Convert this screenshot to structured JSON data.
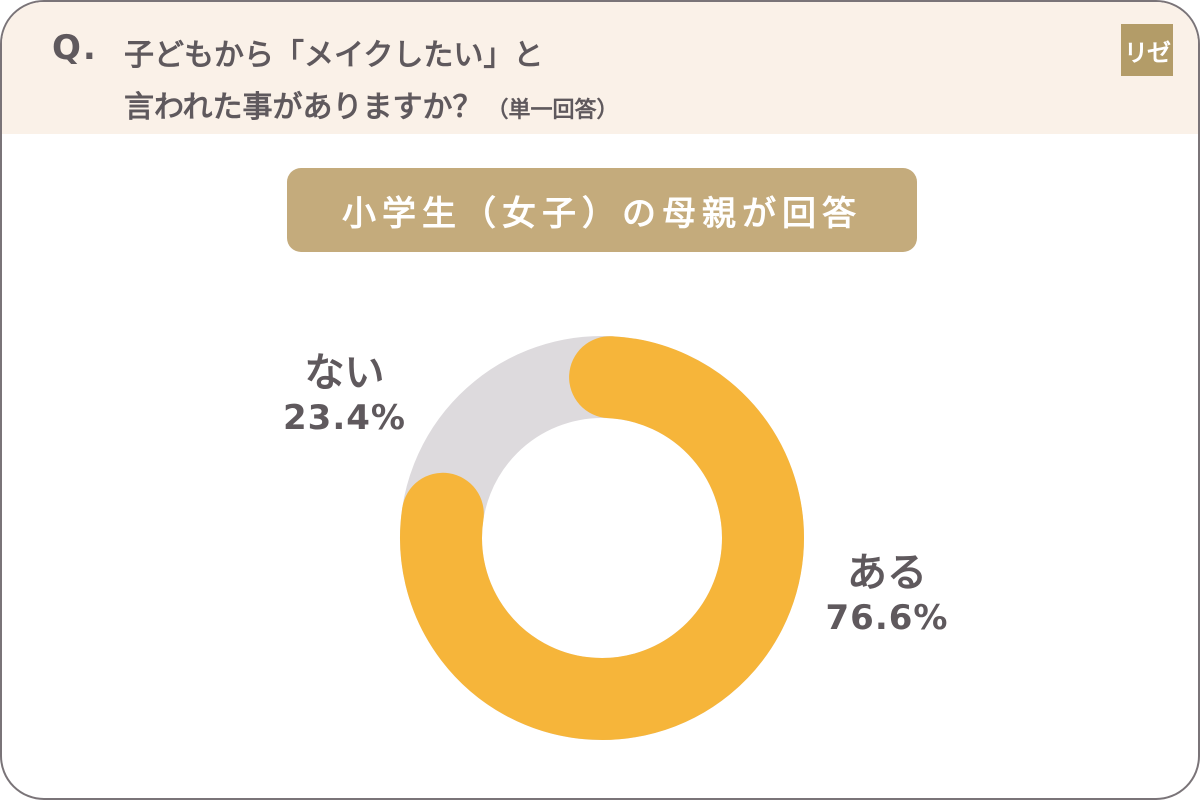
{
  "header": {
    "q_mark": "Q.",
    "question_line1": "子どもから「メイクしたい」と",
    "question_line2": "言われた事がありますか？",
    "question_note": "（単一回答）",
    "logo_text": "リゼ"
  },
  "subtitle": "小学生（女子）の母親が回答",
  "colors": {
    "ある": "#f6b53a",
    "ない": "#dddadd",
    "header_bg": "#faf1e8",
    "pill_bg": "#c4ab7c",
    "text": "#5f595d"
  },
  "chart_data": {
    "type": "pie",
    "style": "donut",
    "title": "小学生（女子）の母親が回答",
    "categories": [
      "ある",
      "ない"
    ],
    "values": [
      76.6,
      23.4
    ],
    "value_labels": [
      "76.6%",
      "23.4%"
    ],
    "unit": "%"
  }
}
